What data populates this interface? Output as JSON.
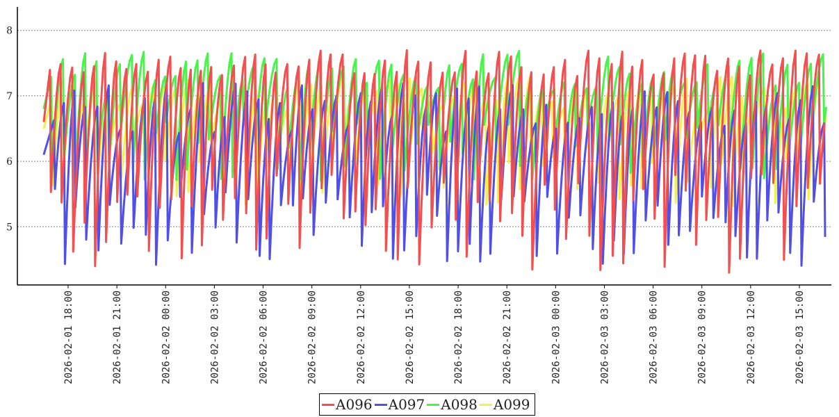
{
  "chart_data": {
    "type": "line",
    "title": "",
    "xlabel": "",
    "ylabel": "",
    "ylim": [
      4.1,
      8.35
    ],
    "yticks": [
      5,
      6,
      7,
      8
    ],
    "grid": "horizontal dotted",
    "legend_position": "bottom-center",
    "x_tick_labels": [
      "2026-02-01 18:00",
      "2026-02-01 21:00",
      "2026-02-02 00:00",
      "2026-02-02 03:00",
      "2026-02-02 06:00",
      "2026-02-02 09:00",
      "2026-02-02 12:00",
      "2026-02-02 15:00",
      "2026-02-02 18:00",
      "2026-02-02 21:00",
      "2026-02-03 00:00",
      "2026-02-03 03:00",
      "2026-02-03 06:00",
      "2026-02-03 09:00",
      "2026-02-03 12:00",
      "2026-02-03 15:00"
    ],
    "x_range": [
      "2026-02-01 16:30",
      "2026-02-03 16:40"
    ],
    "pattern": "sawtooth: each cycle rises to a peak, then drops sharply to a trough",
    "series": [
      {
        "name": "A096",
        "color": "#f25050",
        "cycle_hours": 0.69,
        "phase_hours": 0.0,
        "peak_range": [
          7.3,
          7.7
        ],
        "trough_range": [
          4.3,
          5.8
        ],
        "start_value": 6.6
      },
      {
        "name": "A097",
        "color": "#5050e8",
        "cycle_hours": 0.69,
        "phase_hours": 0.25,
        "peak_range": [
          6.4,
          7.2
        ],
        "trough_range": [
          4.4,
          5.6
        ],
        "start_value": 6.1
      },
      {
        "name": "A098",
        "color": "#4cf24c",
        "cycle_hours": 0.69,
        "phase_hours": 0.07,
        "peak_range": [
          7.1,
          7.7
        ],
        "trough_range": [
          5.7,
          6.6
        ],
        "start_value": 6.8
      },
      {
        "name": "A099",
        "color": "#f2f24c",
        "cycle_hours": 0.69,
        "phase_hours": 0.12,
        "peak_range": [
          6.8,
          7.3
        ],
        "trough_range": [
          5.3,
          6.4
        ],
        "start_value": 6.5
      }
    ]
  }
}
